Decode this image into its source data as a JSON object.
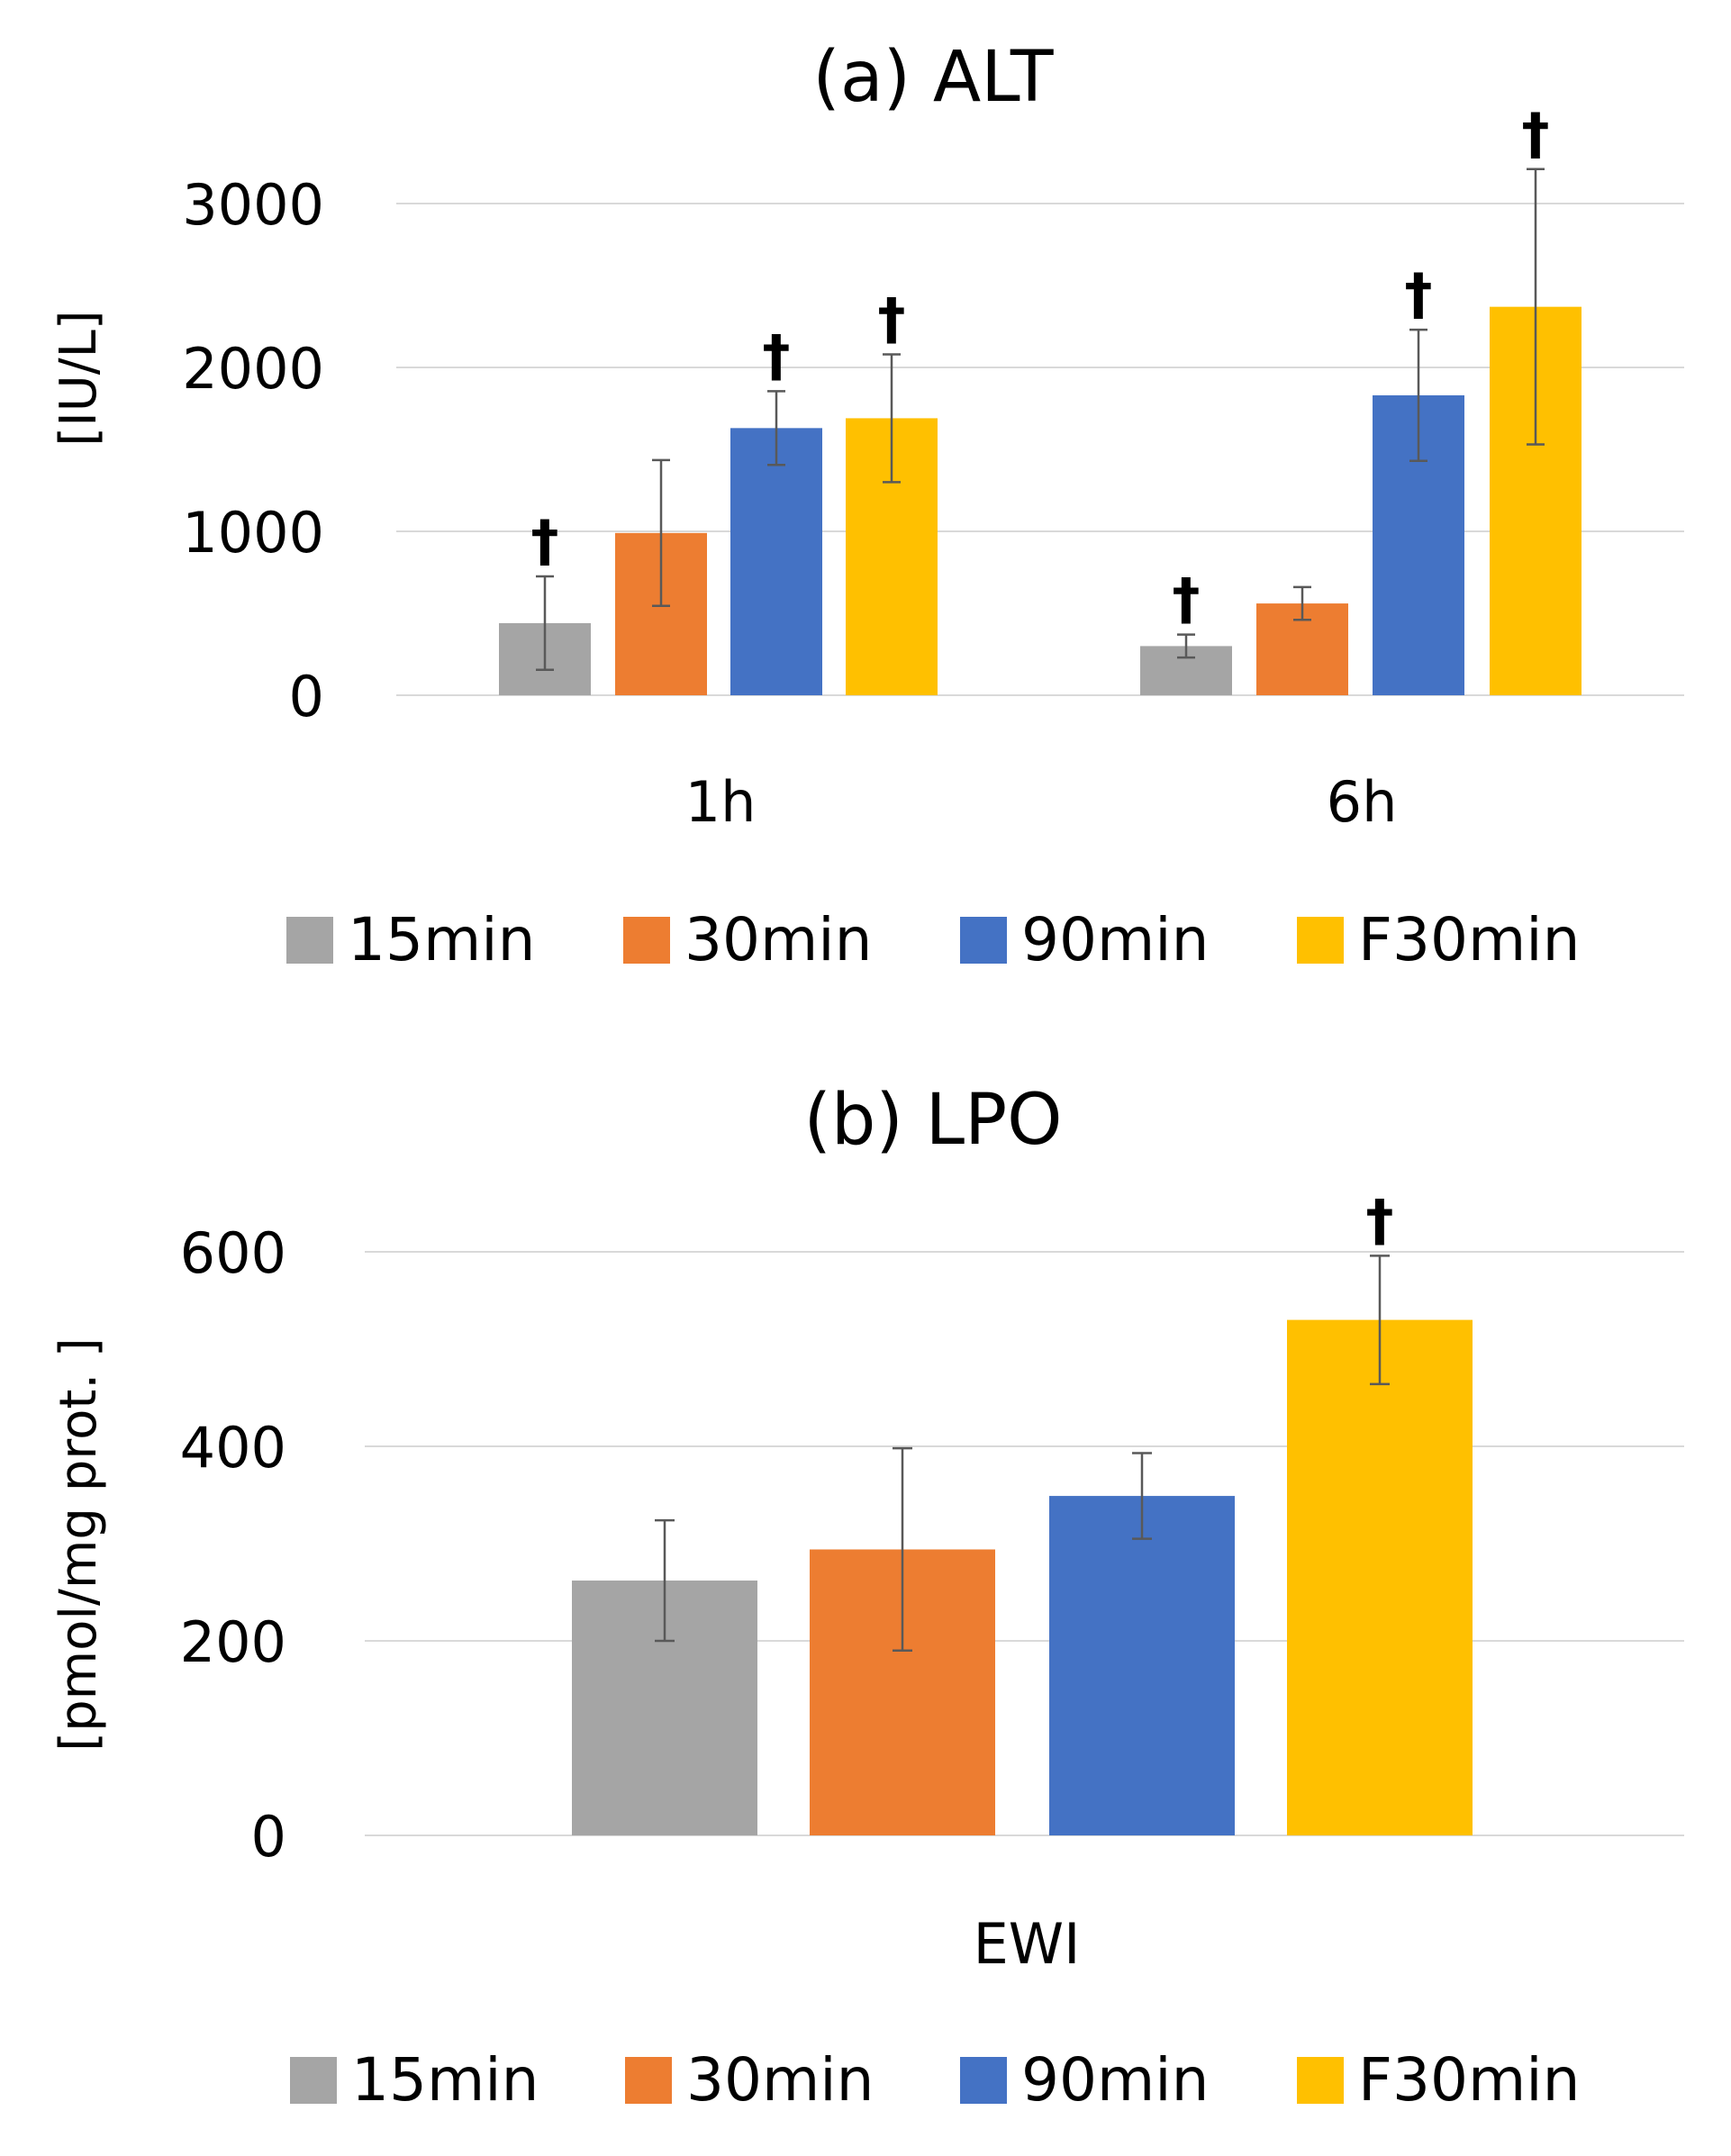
{
  "chart_data": [
    {
      "type": "bar",
      "title": "(a) ALT",
      "ylabel": "[IU/L]",
      "xlabel": "",
      "ylim": [
        0,
        3000
      ],
      "yticks": [
        0,
        1000,
        2000,
        3000
      ],
      "grid": true,
      "legend_position": "bottom",
      "categories": [
        "1h",
        "6h"
      ],
      "series": [
        {
          "name": "15min",
          "color": "#a5a5a5",
          "values": [
            440,
            300
          ],
          "errors": [
            285,
            70
          ],
          "marks": [
            "†",
            "†"
          ]
        },
        {
          "name": "30min",
          "color": "#ed7d31",
          "values": [
            990,
            560
          ],
          "errors": [
            445,
            100
          ],
          "marks": [
            "",
            ""
          ]
        },
        {
          "name": "90min",
          "color": "#4472c4",
          "values": [
            1630,
            1830
          ],
          "errors": [
            225,
            400
          ],
          "marks": [
            "†",
            "†"
          ]
        },
        {
          "name": "F30min",
          "color": "#ffc000",
          "values": [
            1690,
            2370
          ],
          "errors": [
            390,
            840
          ],
          "marks": [
            "†",
            "†"
          ]
        }
      ]
    },
    {
      "type": "bar",
      "title": "(b) LPO",
      "ylabel": "[pmol/mg prot. ]",
      "xlabel": "",
      "ylim": [
        0,
        600
      ],
      "yticks": [
        0,
        200,
        400,
        600
      ],
      "grid": true,
      "legend_position": "bottom",
      "categories": [
        "EWI"
      ],
      "series": [
        {
          "name": "15min",
          "color": "#a5a5a5",
          "values": [
            262
          ],
          "errors": [
            62
          ],
          "marks": [
            ""
          ]
        },
        {
          "name": "30min",
          "color": "#ed7d31",
          "values": [
            294
          ],
          "errors": [
            104
          ],
          "marks": [
            ""
          ]
        },
        {
          "name": "90min",
          "color": "#4472c4",
          "values": [
            349
          ],
          "errors": [
            44
          ],
          "marks": [
            ""
          ]
        },
        {
          "name": "F30min",
          "color": "#ffc000",
          "values": [
            530
          ],
          "errors": [
            66
          ],
          "marks": [
            "†"
          ]
        }
      ]
    }
  ]
}
